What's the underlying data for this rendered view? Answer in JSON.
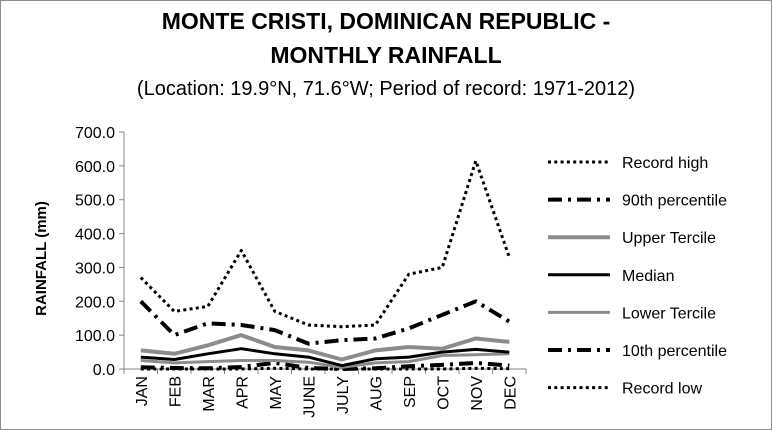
{
  "chart_data": {
    "type": "line",
    "title_line1": "MONTE CRISTI, DOMINICAN REPUBLIC -",
    "title_line2": "MONTHLY RAINFALL",
    "subtitle": "(Location: 19.9°N, 71.6°W; Period of record: 1971-2012)",
    "ylabel": "RAINFALL (mm)",
    "xlabel": "",
    "categories": [
      "JAN",
      "FEB",
      "MAR",
      "APR",
      "MAY",
      "JUNE",
      "JULY",
      "AUG",
      "SEP",
      "OCT",
      "NOV",
      "DEC"
    ],
    "ylim": [
      0,
      700
    ],
    "yticks": [
      "0.0",
      "100.0",
      "200.0",
      "300.0",
      "400.0",
      "500.0",
      "600.0",
      "700.0"
    ],
    "legend_position": "right",
    "series": [
      {
        "name": "Record high",
        "color": "#000000",
        "style": "dotted",
        "width": 3,
        "values": [
          270,
          170,
          185,
          350,
          170,
          130,
          125,
          130,
          280,
          300,
          615,
          330
        ]
      },
      {
        "name": "90th percentile",
        "color": "#000000",
        "style": "dashdot",
        "width": 4,
        "values": [
          200,
          100,
          135,
          130,
          115,
          75,
          85,
          90,
          120,
          160,
          200,
          140
        ]
      },
      {
        "name": "Upper Tercile",
        "color": "#8c8c8c",
        "style": "solid",
        "width": 4,
        "values": [
          55,
          45,
          70,
          100,
          65,
          55,
          28,
          55,
          65,
          60,
          90,
          80
        ]
      },
      {
        "name": "Median",
        "color": "#000000",
        "style": "solid",
        "width": 3,
        "values": [
          35,
          28,
          45,
          60,
          45,
          35,
          10,
          30,
          35,
          50,
          58,
          50
        ]
      },
      {
        "name": "Lower Tercile",
        "color": "#8c8c8c",
        "style": "solid",
        "width": 3,
        "values": [
          25,
          18,
          22,
          25,
          25,
          20,
          5,
          18,
          22,
          40,
          42,
          45
        ]
      },
      {
        "name": "10th percentile",
        "color": "#000000",
        "style": "dashdot",
        "width": 4,
        "values": [
          5,
          3,
          2,
          6,
          18,
          3,
          0,
          2,
          8,
          12,
          18,
          10
        ]
      },
      {
        "name": "Record low",
        "color": "#000000",
        "style": "dotted",
        "width": 3,
        "values": [
          0,
          0,
          0,
          0,
          2,
          0,
          0,
          0,
          0,
          0,
          2,
          1
        ]
      }
    ]
  }
}
